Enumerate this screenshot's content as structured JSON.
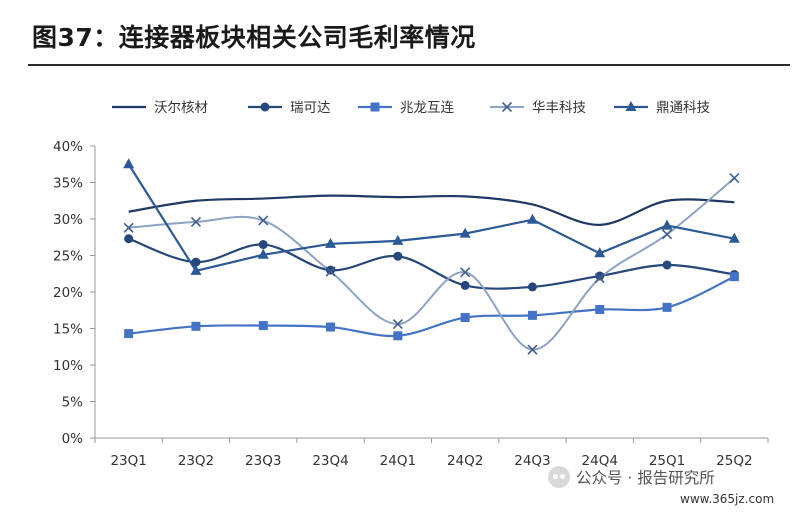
{
  "title": "图37：连接器板块相关公司毛利率情况",
  "watermark": {
    "account": "公众号 · 报告研究所",
    "site": "www.365jz.com",
    "icon": "wechat-icon"
  },
  "chart_data": {
    "type": "line",
    "title": "图37：连接器板块相关公司毛利率情况",
    "xlabel": "",
    "ylabel": "",
    "categories": [
      "23Q1",
      "23Q2",
      "23Q3",
      "23Q4",
      "24Q1",
      "24Q2",
      "24Q3",
      "24Q4",
      "25Q1",
      "25Q2"
    ],
    "ylim": [
      0,
      40
    ],
    "yticks": [
      "0%",
      "5%",
      "10%",
      "15%",
      "20%",
      "25%",
      "30%",
      "35%",
      "40%"
    ],
    "legend_position": "top",
    "grid": false,
    "series": [
      {
        "name": "沃尔核材",
        "marker": "none",
        "color": "#1f3864",
        "width": 2.2,
        "values": [
          31.0,
          32.5,
          32.8,
          33.2,
          33.0,
          33.1,
          32.0,
          29.2,
          32.5,
          32.3
        ]
      },
      {
        "name": "瑞可达",
        "marker": "circle",
        "color": "#26477a",
        "width": 2.2,
        "values": [
          27.3,
          24.1,
          26.5,
          23.0,
          24.9,
          20.9,
          20.7,
          22.2,
          23.7,
          22.4
        ]
      },
      {
        "name": "兆龙互连",
        "marker": "square",
        "color": "#4472c4",
        "width": 2.2,
        "values": [
          14.3,
          15.3,
          15.4,
          15.2,
          14.0,
          16.5,
          16.8,
          17.6,
          17.9,
          22.1
        ]
      },
      {
        "name": "华丰科技",
        "marker": "x",
        "color": "#8ea3c4",
        "width": 2.0,
        "values": [
          28.8,
          29.6,
          29.8,
          22.8,
          15.6,
          22.7,
          12.1,
          21.9,
          27.9,
          35.6
        ]
      },
      {
        "name": "鼎通科技",
        "marker": "triangle",
        "color": "#2c5a96",
        "width": 2.2,
        "values": [
          37.5,
          22.9,
          25.1,
          26.6,
          27.0,
          28.0,
          29.9,
          25.3,
          29.1,
          27.3
        ]
      }
    ]
  }
}
